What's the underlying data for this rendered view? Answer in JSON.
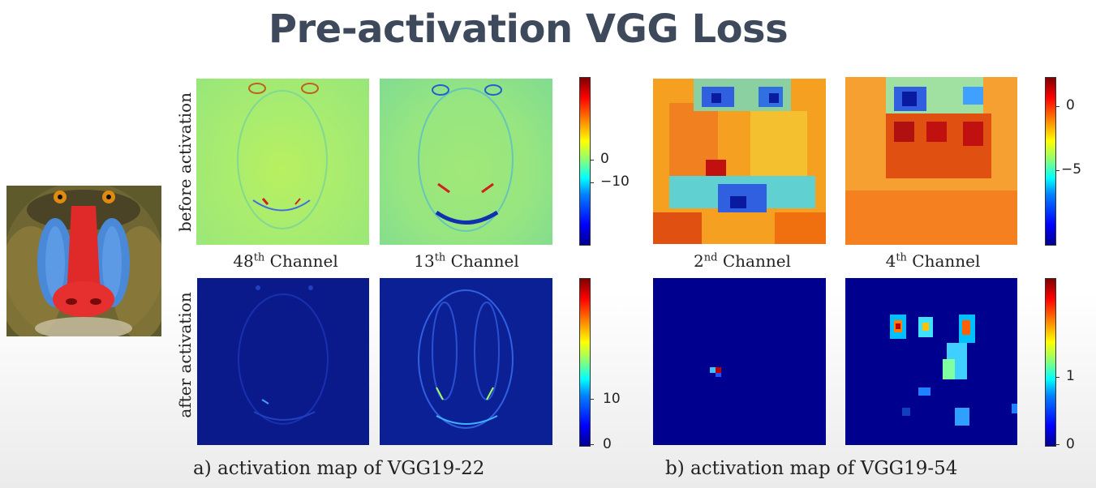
{
  "title": "Pre-activation VGG Loss",
  "row_labels": {
    "before": "before activation",
    "after": "after activation"
  },
  "panel_a": {
    "channels": [
      {
        "num": "48",
        "sup": "th",
        "word": "Channel"
      },
      {
        "num": "13",
        "sup": "th",
        "word": "Channel"
      }
    ],
    "before_ticks": [
      "0",
      "−10"
    ],
    "after_ticks": [
      "10",
      "0"
    ],
    "caption": "a) activation map of  VGG19-22"
  },
  "panel_b": {
    "channels": [
      {
        "num": "2",
        "sup": "nd",
        "word": "Channel"
      },
      {
        "num": "4",
        "sup": "th",
        "word": "Channel"
      }
    ],
    "before_ticks": [
      "0",
      "−5"
    ],
    "after_ticks": [
      "1",
      "0"
    ],
    "caption": "b) activation map of  VGG19-54"
  },
  "colors": {
    "title": "#3e4a5c",
    "jet_low": "#00008f",
    "jet_mid": "#80ff80",
    "jet_high": "#800000"
  }
}
